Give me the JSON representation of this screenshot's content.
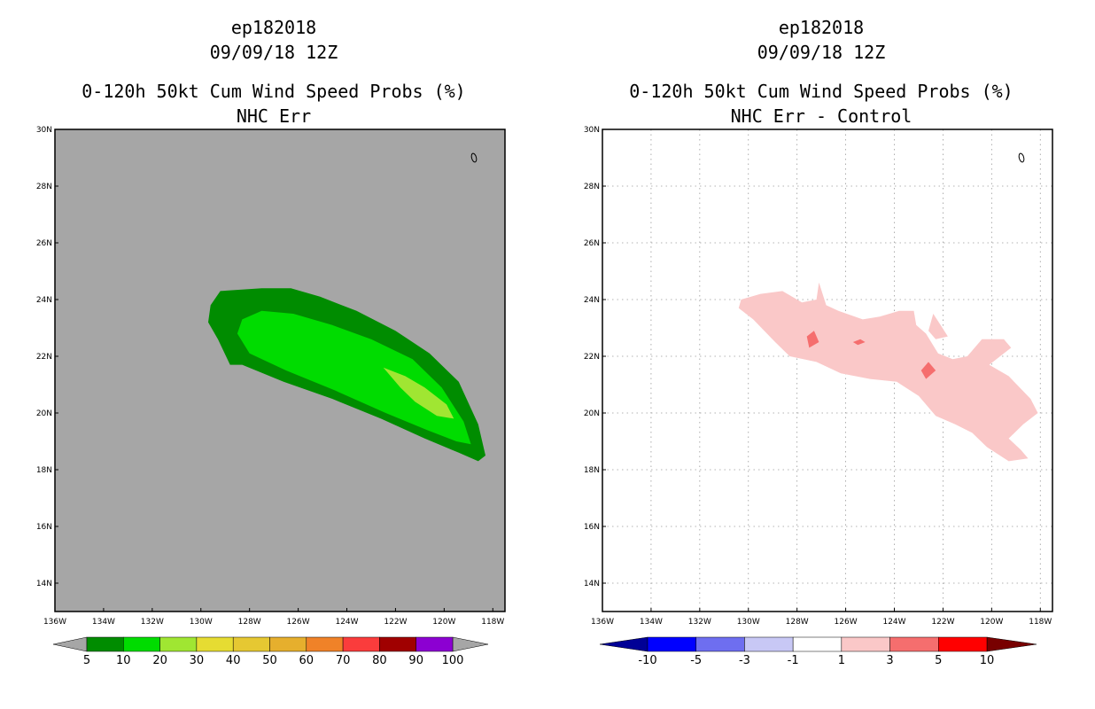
{
  "chart_data": [
    {
      "type": "heatmap",
      "title_lines": [
        "ep182018",
        "09/09/18 12Z",
        "0-120h 50kt Cum Wind Speed Probs (%)",
        "NHC Err"
      ],
      "x_ticks": [
        "136W",
        "134W",
        "132W",
        "130W",
        "128W",
        "126W",
        "124W",
        "122W",
        "120W",
        "118W"
      ],
      "x_values": [
        -136,
        -134,
        -132,
        -130,
        -128,
        -126,
        -124,
        -122,
        -120,
        -118
      ],
      "y_ticks": [
        "14N",
        "16N",
        "18N",
        "20N",
        "22N",
        "24N",
        "26N",
        "28N",
        "30N"
      ],
      "y_values": [
        14,
        16,
        18,
        20,
        22,
        24,
        26,
        28,
        30
      ],
      "xlim": [
        -136,
        -117.5
      ],
      "ylim": [
        13,
        30
      ],
      "background_color": "#a6a6a6",
      "grid": false,
      "colorbar": {
        "labels": [
          "5",
          "10",
          "20",
          "30",
          "40",
          "50",
          "60",
          "70",
          "80",
          "90",
          "100"
        ],
        "colors": [
          "#008c00",
          "#00dc00",
          "#a0e632",
          "#e6dc32",
          "#e6c832",
          "#e6af2d",
          "#f08228",
          "#fa3c3c",
          "#a00000",
          "#8c00d2"
        ],
        "under_color": "#a6a6a6",
        "over_color": "#a6a6a6"
      },
      "contours": [
        {
          "level": 5,
          "color": "#008c00",
          "points": [
            [
              -129.6,
              23.8
            ],
            [
              -129.2,
              24.3
            ],
            [
              -127.5,
              24.4
            ],
            [
              -126.3,
              24.4
            ],
            [
              -125.1,
              24.1
            ],
            [
              -123.6,
              23.6
            ],
            [
              -122,
              22.9
            ],
            [
              -120.6,
              22.1
            ],
            [
              -119.4,
              21.1
            ],
            [
              -118.6,
              19.6
            ],
            [
              -118.3,
              18.5
            ],
            [
              -118.6,
              18.3
            ],
            [
              -119.4,
              18.6
            ],
            [
              -120.8,
              19.1
            ],
            [
              -122.6,
              19.8
            ],
            [
              -124.6,
              20.5
            ],
            [
              -126.6,
              21.1
            ],
            [
              -128.3,
              21.7
            ],
            [
              -128.8,
              21.7
            ],
            [
              -129.3,
              22.6
            ],
            [
              -129.7,
              23.2
            ]
          ]
        },
        {
          "level": 10,
          "color": "#00dc00",
          "points": [
            [
              -128.5,
              22.8
            ],
            [
              -128.3,
              23.3
            ],
            [
              -127.5,
              23.6
            ],
            [
              -126.2,
              23.5
            ],
            [
              -124.6,
              23.1
            ],
            [
              -123,
              22.6
            ],
            [
              -121.3,
              21.9
            ],
            [
              -120.1,
              20.9
            ],
            [
              -119.2,
              19.7
            ],
            [
              -118.9,
              18.9
            ],
            [
              -119.5,
              19
            ],
            [
              -120.7,
              19.4
            ],
            [
              -122.4,
              20
            ],
            [
              -124.5,
              20.8
            ],
            [
              -126.5,
              21.5
            ],
            [
              -128,
              22.1
            ]
          ]
        },
        {
          "level": 20,
          "color": "#a0e632",
          "points": [
            [
              -122.5,
              21.6
            ],
            [
              -121.6,
              21.3
            ],
            [
              -120.8,
              20.9
            ],
            [
              -119.9,
              20.3
            ],
            [
              -119.6,
              19.8
            ],
            [
              -120.3,
              19.9
            ],
            [
              -121.2,
              20.4
            ],
            [
              -121.8,
              20.9
            ],
            [
              -122.2,
              21.3
            ]
          ]
        }
      ]
    },
    {
      "type": "heatmap",
      "title_lines": [
        "ep182018",
        "09/09/18 12Z",
        "0-120h 50kt Cum Wind Speed Probs (%)",
        "NHC Err - Control"
      ],
      "x_ticks": [
        "136W",
        "134W",
        "132W",
        "130W",
        "128W",
        "126W",
        "124W",
        "122W",
        "120W",
        "118W"
      ],
      "x_values": [
        -136,
        -134,
        -132,
        -130,
        -128,
        -126,
        -124,
        -122,
        -120,
        -118
      ],
      "y_ticks": [
        "14N",
        "16N",
        "18N",
        "20N",
        "22N",
        "24N",
        "26N",
        "28N",
        "30N"
      ],
      "y_values": [
        14,
        16,
        18,
        20,
        22,
        24,
        26,
        28,
        30
      ],
      "xlim": [
        -136,
        -117.5
      ],
      "ylim": [
        13,
        30
      ],
      "background_color": "#ffffff",
      "grid": true,
      "colorbar": {
        "labels": [
          "-10",
          "-5",
          "-3",
          "-1",
          "1",
          "3",
          "5",
          "10"
        ],
        "colors": [
          "#0000ff",
          "#6e6ef0",
          "#c8c8f5",
          "#ffffff",
          "#fac8c8",
          "#f56e6e",
          "#ff0000"
        ],
        "under_color": "#000096",
        "over_color": "#780000"
      },
      "contours": [
        {
          "level": 1,
          "color": "#fac8c8",
          "points": [
            [
              -130.3,
              24
            ],
            [
              -129.5,
              24.2
            ],
            [
              -128.6,
              24.3
            ],
            [
              -127.8,
              23.9
            ],
            [
              -127.2,
              24
            ],
            [
              -127.1,
              24.6
            ],
            [
              -126.8,
              23.8
            ],
            [
              -126.3,
              23.6
            ],
            [
              -125.3,
              23.3
            ],
            [
              -124.6,
              23.4
            ],
            [
              -123.8,
              23.6
            ],
            [
              -123.2,
              23.6
            ],
            [
              -123.1,
              23.1
            ],
            [
              -122.7,
              22.8
            ],
            [
              -122.2,
              22.1
            ],
            [
              -121.6,
              21.9
            ],
            [
              -121,
              22
            ],
            [
              -120.4,
              22.6
            ],
            [
              -119.5,
              22.6
            ],
            [
              -119.2,
              22.3
            ],
            [
              -120.1,
              21.7
            ],
            [
              -119.3,
              21.3
            ],
            [
              -118.4,
              20.5
            ],
            [
              -118.1,
              20
            ],
            [
              -118.7,
              19.6
            ],
            [
              -119.3,
              19.1
            ],
            [
              -118.8,
              18.7
            ],
            [
              -118.5,
              18.4
            ],
            [
              -119.3,
              18.3
            ],
            [
              -120.2,
              18.8
            ],
            [
              -120.8,
              19.3
            ],
            [
              -121.5,
              19.6
            ],
            [
              -122.3,
              19.9
            ],
            [
              -123,
              20.6
            ],
            [
              -123.9,
              21.1
            ],
            [
              -125,
              21.2
            ],
            [
              -126.2,
              21.4
            ],
            [
              -127.2,
              21.8
            ],
            [
              -128.3,
              22
            ],
            [
              -128.9,
              22.5
            ],
            [
              -129.8,
              23.3
            ],
            [
              -130.4,
              23.7
            ]
          ]
        },
        {
          "level": 1,
          "color": "#fac8c8",
          "points": [
            [
              -122.4,
              23.5
            ],
            [
              -122.1,
              23.1
            ],
            [
              -121.8,
              22.7
            ],
            [
              -122.3,
              22.6
            ],
            [
              -122.6,
              22.9
            ]
          ]
        },
        {
          "level": 3,
          "color": "#f56e6e",
          "points": [
            [
              -127.6,
              22.7
            ],
            [
              -127.3,
              22.9
            ],
            [
              -127.1,
              22.5
            ],
            [
              -127.5,
              22.3
            ]
          ]
        },
        {
          "level": 3,
          "color": "#f56e6e",
          "points": [
            [
              -125.7,
              22.5
            ],
            [
              -125.4,
              22.6
            ],
            [
              -125.2,
              22.5
            ],
            [
              -125.5,
              22.4
            ]
          ]
        },
        {
          "level": 3,
          "color": "#f56e6e",
          "points": [
            [
              -122.9,
              21.5
            ],
            [
              -122.6,
              21.8
            ],
            [
              -122.3,
              21.5
            ],
            [
              -122.7,
              21.2
            ]
          ]
        }
      ]
    }
  ]
}
